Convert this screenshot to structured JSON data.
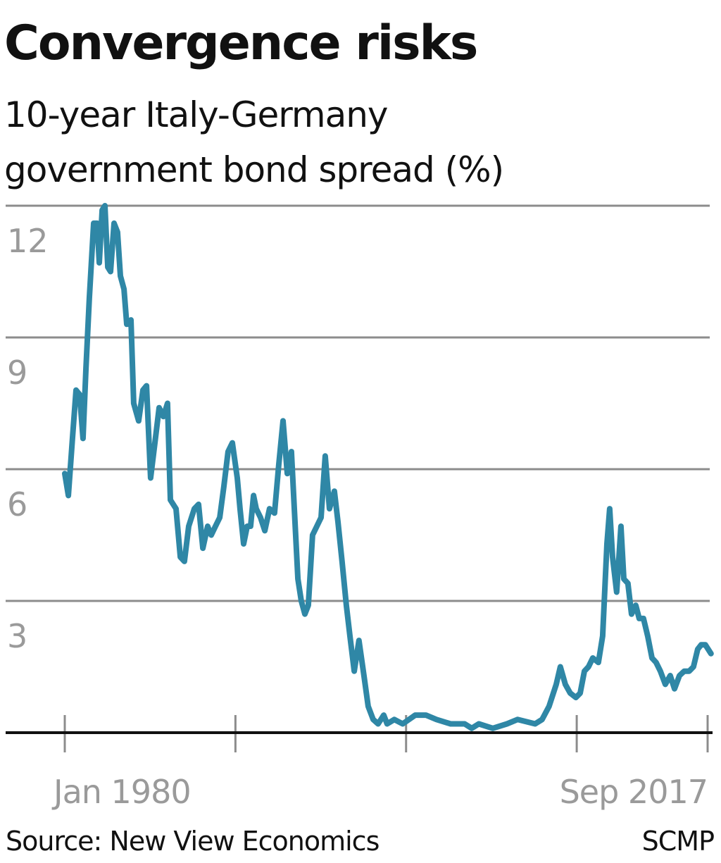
{
  "chart_data": {
    "type": "line",
    "title": "Convergence risks",
    "subtitle_lines": [
      "10-year Italy-Germany",
      "government bond spread (%)"
    ],
    "xlabel": "",
    "ylabel": "",
    "ylim": [
      0,
      12
    ],
    "yticks": [
      3,
      6,
      9,
      12
    ],
    "ytick_labels": [
      "3",
      "6",
      "9",
      "12"
    ],
    "xlim": [
      1980.0,
      2017.67
    ],
    "xticks": [
      1980.0,
      1990.0,
      2000.0,
      2010.0,
      2017.67
    ],
    "xtick_labels": [
      {
        "value": 1980.0,
        "label": "Jan 1980"
      },
      {
        "value": 2017.67,
        "label": "Sep 2017"
      }
    ],
    "grid": true,
    "line_color": "#2f87a6",
    "series": [
      {
        "x": [
          1980.0,
          1980.21,
          1980.45,
          1980.66,
          1980.87,
          1981.07,
          1981.24,
          1981.44,
          1981.69,
          1981.9,
          1982.02,
          1982.19,
          1982.35,
          1982.52,
          1982.68,
          1982.89,
          1983.09,
          1983.26,
          1983.47,
          1983.63,
          1983.88,
          1984.04,
          1984.33,
          1984.58,
          1984.79,
          1985.03,
          1985.28,
          1985.53,
          1985.78,
          1986.02,
          1986.19,
          1986.52,
          1986.77,
          1987.01,
          1987.26,
          1987.59,
          1987.84,
          1988.09,
          1988.37,
          1988.58,
          1988.83,
          1989.08,
          1989.32,
          1989.57,
          1989.82,
          1990.11,
          1990.27,
          1990.48,
          1990.69,
          1990.89,
          1991.06,
          1991.22,
          1991.47,
          1991.72,
          1992.0,
          1992.29,
          1992.54,
          1992.79,
          1993.04,
          1993.28,
          1993.45,
          1993.66,
          1993.86,
          1994.07,
          1994.27,
          1994.52,
          1994.77,
          1995.02,
          1995.26,
          1995.51,
          1995.8,
          1996.01,
          1996.25,
          1996.5,
          1996.71,
          1996.96,
          1997.24,
          1997.53,
          1997.78,
          1998.07,
          1998.36,
          1998.69,
          1998.89,
          1999.31,
          1999.8,
          2000.54,
          2001.16,
          2001.78,
          2002.61,
          2003.43,
          2003.85,
          2004.26,
          2005.08,
          2005.91,
          2006.53,
          2007.56,
          2007.97,
          2008.38,
          2008.8,
          2009.04,
          2009.33,
          2009.62,
          2009.95,
          2010.2,
          2010.45,
          2010.69,
          2010.94,
          2011.27,
          2011.52,
          2011.77,
          2011.93,
          2012.1,
          2012.34,
          2012.59,
          2012.76,
          2013.0,
          2013.21,
          2013.46,
          2013.66,
          2013.91,
          2014.16,
          2014.41,
          2014.65,
          2014.9,
          2015.19,
          2015.48,
          2015.73,
          2016.02,
          2016.3,
          2016.59,
          2016.84,
          2017.09,
          2017.29,
          2017.54,
          2017.87
        ],
        "y": [
          5.9,
          5.4,
          6.7,
          7.8,
          7.7,
          6.7,
          8.3,
          9.9,
          11.6,
          11.6,
          10.7,
          11.9,
          12.0,
          10.6,
          10.5,
          11.6,
          11.4,
          10.4,
          10.1,
          9.3,
          9.4,
          7.5,
          7.1,
          7.8,
          7.9,
          5.8,
          6.6,
          7.4,
          7.2,
          7.5,
          5.3,
          5.1,
          4.0,
          3.9,
          4.7,
          5.1,
          5.2,
          4.2,
          4.7,
          4.5,
          4.7,
          4.9,
          5.6,
          6.4,
          6.6,
          5.8,
          5.1,
          4.3,
          4.7,
          4.7,
          5.4,
          5.1,
          4.9,
          4.6,
          5.1,
          5.0,
          6.1,
          7.1,
          5.9,
          6.4,
          5.1,
          3.5,
          3.0,
          2.7,
          2.9,
          4.5,
          4.7,
          4.9,
          6.3,
          5.1,
          5.5,
          4.8,
          3.9,
          2.9,
          2.2,
          1.4,
          2.1,
          1.3,
          0.6,
          0.3,
          0.2,
          0.4,
          0.2,
          0.3,
          0.2,
          0.4,
          0.4,
          0.3,
          0.2,
          0.2,
          0.1,
          0.2,
          0.1,
          0.2,
          0.3,
          0.2,
          0.3,
          0.6,
          1.1,
          1.5,
          1.1,
          0.9,
          0.8,
          0.9,
          1.4,
          1.5,
          1.7,
          1.6,
          2.2,
          4.3,
          5.1,
          4.0,
          3.2,
          4.7,
          3.5,
          3.4,
          2.7,
          2.9,
          2.6,
          2.6,
          2.2,
          1.7,
          1.6,
          1.4,
          1.1,
          1.3,
          1.0,
          1.3,
          1.4,
          1.4,
          1.5,
          1.9,
          2.0,
          2.0,
          1.8
        ]
      }
    ],
    "source": "Source: New View Economics",
    "credit": "SCMP"
  }
}
